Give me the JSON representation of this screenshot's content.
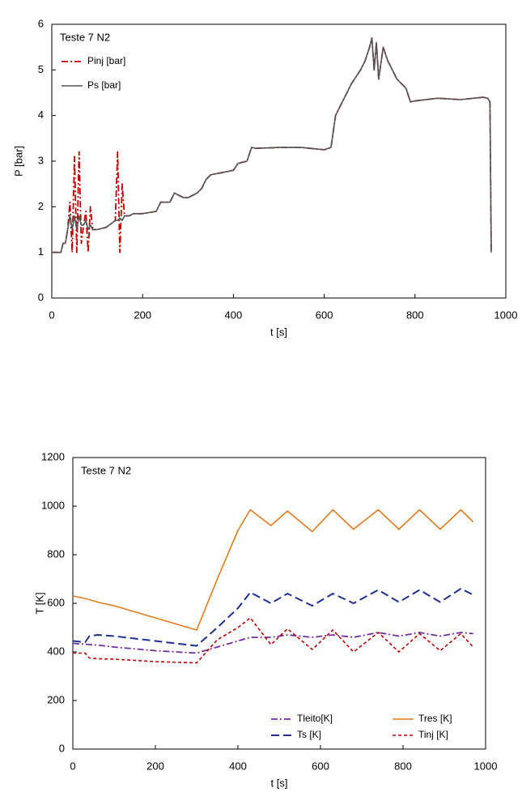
{
  "chart_data": [
    {
      "type": "line",
      "annotation": "Teste 7 N2",
      "xlabel": "t [s]",
      "ylabel": "P [bar]",
      "x": [
        0,
        20,
        25,
        30,
        35,
        40,
        45,
        50,
        55,
        60,
        65,
        70,
        75,
        80,
        85,
        90,
        100,
        120,
        140,
        145,
        150,
        155,
        160,
        170,
        180,
        200,
        230,
        240,
        260,
        270,
        290,
        300,
        320,
        330,
        340,
        350,
        400,
        410,
        430,
        440,
        450,
        500,
        550,
        600,
        615,
        625,
        640,
        650,
        660,
        680,
        690,
        700,
        705,
        710,
        715,
        720,
        730,
        740,
        750,
        760,
        780,
        790,
        800,
        850,
        900,
        950,
        960,
        965,
        968
      ],
      "series": [
        {
          "name": "Pinj [bar]",
          "color": "#c00000",
          "dash": "dashdot",
          "values": [
            1.0,
            1.0,
            1.2,
            1.2,
            1.5,
            2.1,
            1.0,
            3.1,
            1.0,
            3.2,
            1.2,
            1.6,
            1.9,
            1.0,
            2.0,
            1.5,
            1.5,
            1.55,
            1.7,
            3.2,
            1.0,
            2.5,
            1.8,
            1.8,
            1.85,
            1.85,
            1.9,
            2.1,
            2.1,
            2.3,
            2.2,
            2.2,
            2.3,
            2.4,
            2.6,
            2.7,
            2.8,
            2.95,
            3.0,
            3.3,
            3.28,
            3.3,
            3.3,
            3.25,
            3.3,
            4.0,
            4.3,
            4.5,
            4.7,
            5.0,
            5.2,
            5.5,
            5.7,
            5.0,
            5.6,
            4.8,
            5.5,
            5.2,
            5.0,
            4.8,
            4.6,
            4.3,
            4.32,
            4.38,
            4.35,
            4.4,
            4.38,
            4.3,
            1.0
          ]
        },
        {
          "name": "Ps [bar]",
          "color": "#555555",
          "dash": "solid",
          "values": [
            1.0,
            1.0,
            1.2,
            1.2,
            1.5,
            1.8,
            1.5,
            1.8,
            1.5,
            1.8,
            1.6,
            1.6,
            1.7,
            1.5,
            1.6,
            1.5,
            1.5,
            1.55,
            1.7,
            1.7,
            1.75,
            1.7,
            1.8,
            1.8,
            1.85,
            1.85,
            1.9,
            2.1,
            2.1,
            2.3,
            2.2,
            2.2,
            2.3,
            2.4,
            2.6,
            2.7,
            2.8,
            2.95,
            3.0,
            3.3,
            3.28,
            3.3,
            3.3,
            3.25,
            3.3,
            4.0,
            4.3,
            4.5,
            4.7,
            5.0,
            5.2,
            5.5,
            5.7,
            5.0,
            5.6,
            4.8,
            5.5,
            5.2,
            5.0,
            4.8,
            4.6,
            4.3,
            4.32,
            4.38,
            4.35,
            4.4,
            4.38,
            4.3,
            1.0
          ]
        }
      ],
      "xlim": [
        0,
        1000
      ],
      "xticks": [
        0,
        200,
        400,
        600,
        800,
        1000
      ],
      "ylim": [
        0,
        6
      ],
      "yticks": [
        0,
        1,
        2,
        3,
        4,
        5,
        6
      ],
      "legend": "upper left",
      "grid": false
    },
    {
      "type": "line",
      "annotation": "Teste 7 N2",
      "xlabel": "t [s]",
      "ylabel": "T [K]",
      "x": [
        0,
        30,
        40,
        60,
        100,
        200,
        300,
        350,
        400,
        430,
        480,
        520,
        580,
        630,
        680,
        740,
        790,
        840,
        890,
        940,
        970
      ],
      "series": [
        {
          "name": "Tleito[K]",
          "color": "#7030a0",
          "dash": "dashdot",
          "values": [
            435,
            432,
            430,
            428,
            420,
            405,
            395,
            420,
            445,
            460,
            460,
            470,
            460,
            470,
            460,
            480,
            465,
            480,
            465,
            480,
            475
          ]
        },
        {
          "name": "Tres [K]",
          "color": "#e07b20",
          "dash": "solid",
          "values": [
            630,
            620,
            615,
            605,
            590,
            540,
            490,
            700,
            900,
            985,
            920,
            980,
            895,
            985,
            905,
            985,
            905,
            985,
            905,
            985,
            935
          ]
        },
        {
          "name": "Ts  [K]",
          "color": "#1f2f8f",
          "dash": "dashed",
          "values": [
            445,
            440,
            465,
            470,
            465,
            445,
            425,
            500,
            580,
            645,
            600,
            640,
            590,
            640,
            600,
            655,
            605,
            655,
            605,
            660,
            635
          ]
        },
        {
          "name": "Tinj [K]",
          "color": "#c00000",
          "dash": "dotted",
          "values": [
            395,
            395,
            375,
            372,
            370,
            360,
            355,
            450,
            500,
            540,
            430,
            495,
            410,
            490,
            400,
            480,
            400,
            475,
            405,
            475,
            420
          ]
        }
      ],
      "xlim": [
        0,
        1000
      ],
      "xticks": [
        0,
        200,
        400,
        600,
        800,
        1000
      ],
      "ylim": [
        0,
        1200
      ],
      "yticks": [
        0,
        200,
        400,
        600,
        800,
        1000,
        1200
      ],
      "legend": "lower right",
      "grid": false
    }
  ]
}
